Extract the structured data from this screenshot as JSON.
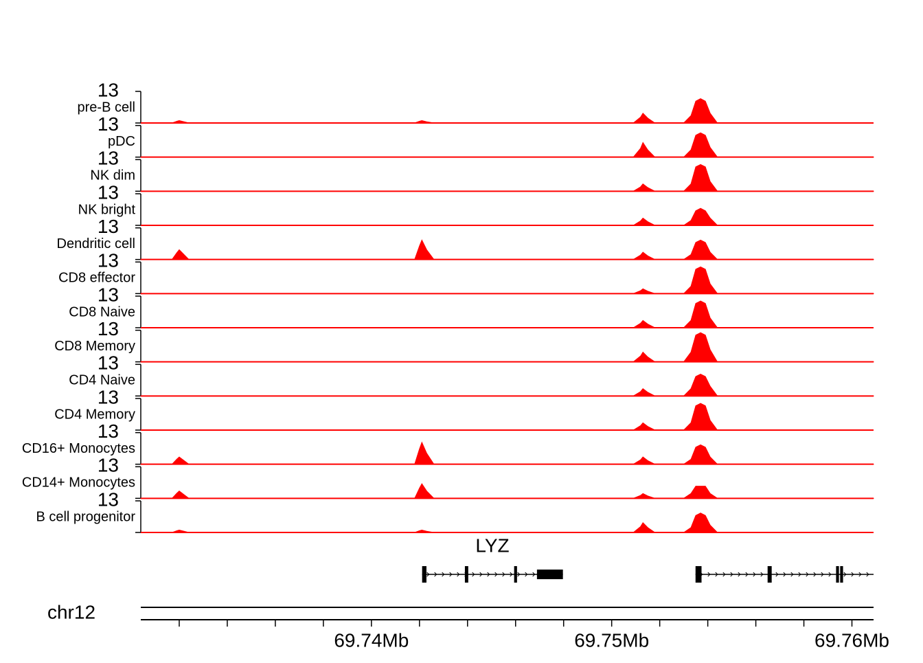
{
  "chart_data": {
    "type": "coverage-tracks",
    "xlim": [
      69.7304,
      69.7609
    ],
    "ylim": [
      0,
      13
    ],
    "yticks": [
      13
    ],
    "xticks": [
      {
        "value": 69.74,
        "label": "69.74Mb"
      },
      {
        "value": 69.75,
        "label": "69.75Mb"
      },
      {
        "value": 69.76,
        "label": "69.76Mb"
      }
    ],
    "xminorticks": [
      69.732,
      69.734,
      69.736,
      69.738,
      69.742,
      69.744,
      69.746,
      69.748,
      69.752,
      69.754,
      69.756,
      69.758
    ],
    "chromosome": "chr12",
    "series": [
      {
        "name": "pre-B cell",
        "color": "#ff0000",
        "x": [
          69.7304,
          69.7317,
          69.7319,
          69.732,
          69.7322,
          69.7324,
          69.7418,
          69.742,
          69.7421,
          69.7423,
          69.7426,
          69.7509,
          69.7512,
          69.7513,
          69.7515,
          69.7518,
          69.753,
          69.7533,
          69.7535,
          69.7537,
          69.7539,
          69.7541,
          69.7544,
          69.7609
        ],
        "values": [
          0,
          0,
          0.7,
          1,
          0.5,
          0,
          0,
          0.7,
          1,
          0.5,
          0,
          0,
          2.4,
          4,
          2,
          0,
          0,
          3,
          9,
          10,
          9,
          4,
          0,
          0
        ]
      },
      {
        "name": "pDC",
        "color": "#ff0000",
        "x": [
          69.7304,
          69.7509,
          69.7512,
          69.7513,
          69.7515,
          69.7518,
          69.753,
          69.7533,
          69.7535,
          69.7537,
          69.7539,
          69.7541,
          69.7544,
          69.7609
        ],
        "values": [
          0,
          0,
          3.6,
          6,
          3,
          0,
          0,
          3,
          9,
          10,
          9,
          4,
          0,
          0
        ]
      },
      {
        "name": "NK dim",
        "color": "#ff0000",
        "x": [
          69.7304,
          69.7509,
          69.7512,
          69.7513,
          69.7515,
          69.7518,
          69.753,
          69.7533,
          69.7535,
          69.7537,
          69.7539,
          69.7541,
          69.7544,
          69.7609
        ],
        "values": [
          0,
          0,
          1.8,
          3,
          1.5,
          0,
          0,
          3,
          10,
          11,
          10,
          4,
          0,
          0
        ]
      },
      {
        "name": "NK bright",
        "color": "#ff0000",
        "x": [
          69.7304,
          69.7509,
          69.7512,
          69.7513,
          69.7515,
          69.7518,
          69.753,
          69.7533,
          69.7535,
          69.7537,
          69.7539,
          69.7541,
          69.7544,
          69.7609
        ],
        "values": [
          0,
          0,
          1.8,
          3,
          1.5,
          0,
          0,
          2,
          6,
          7,
          6,
          3,
          0,
          0
        ]
      },
      {
        "name": "Dendritic cell",
        "color": "#ff0000",
        "x": [
          69.7304,
          69.7317,
          69.7319,
          69.732,
          69.7322,
          69.7324,
          69.7418,
          69.742,
          69.7421,
          69.7423,
          69.7426,
          69.7509,
          69.7512,
          69.7513,
          69.7515,
          69.7518,
          69.753,
          69.7533,
          69.7535,
          69.7537,
          69.7539,
          69.7541,
          69.7544,
          69.7609
        ],
        "values": [
          0,
          0,
          2.8,
          4,
          2,
          0,
          0,
          5.6,
          8,
          4,
          0,
          0,
          1.8,
          3,
          1.5,
          0,
          0,
          2,
          7,
          8,
          7,
          3,
          0,
          0
        ]
      },
      {
        "name": "CD8 effector",
        "color": "#ff0000",
        "x": [
          69.7304,
          69.7509,
          69.7512,
          69.7513,
          69.7515,
          69.7518,
          69.753,
          69.7533,
          69.7535,
          69.7537,
          69.7539,
          69.7541,
          69.7544,
          69.7609
        ],
        "values": [
          0,
          0,
          1.2,
          2,
          1,
          0,
          0,
          3,
          10,
          11,
          10,
          4,
          0,
          0
        ]
      },
      {
        "name": "CD8 Naive",
        "color": "#ff0000",
        "x": [
          69.7304,
          69.7509,
          69.7512,
          69.7513,
          69.7515,
          69.7518,
          69.753,
          69.7533,
          69.7535,
          69.7537,
          69.7539,
          69.7541,
          69.7544,
          69.7609
        ],
        "values": [
          0,
          0,
          1.8,
          3,
          1.5,
          0,
          0,
          3,
          10,
          11,
          10,
          4,
          0,
          0
        ]
      },
      {
        "name": "CD8 Memory",
        "color": "#ff0000",
        "x": [
          69.7304,
          69.7509,
          69.7512,
          69.7513,
          69.7515,
          69.7518,
          69.753,
          69.7533,
          69.7535,
          69.7537,
          69.7539,
          69.7541,
          69.7544,
          69.7609
        ],
        "values": [
          0,
          0,
          2.4,
          4,
          2,
          0,
          0,
          4,
          11,
          12,
          11,
          5,
          0,
          0
        ]
      },
      {
        "name": "CD4 Naive",
        "color": "#ff0000",
        "x": [
          69.7304,
          69.7509,
          69.7512,
          69.7513,
          69.7515,
          69.7518,
          69.753,
          69.7533,
          69.7535,
          69.7537,
          69.7539,
          69.7541,
          69.7544,
          69.7609
        ],
        "values": [
          0,
          0,
          1.8,
          3,
          1.5,
          0,
          0,
          3,
          8,
          9,
          8,
          4,
          0,
          0
        ]
      },
      {
        "name": "CD4 Memory",
        "color": "#ff0000",
        "x": [
          69.7304,
          69.7509,
          69.7512,
          69.7513,
          69.7515,
          69.7518,
          69.753,
          69.7533,
          69.7535,
          69.7537,
          69.7539,
          69.7541,
          69.7544,
          69.7609
        ],
        "values": [
          0,
          0,
          1.8,
          3,
          1.5,
          0,
          0,
          3,
          10,
          11,
          10,
          4,
          0,
          0
        ]
      },
      {
        "name": "CD16+ Monocytes",
        "color": "#ff0000",
        "x": [
          69.7304,
          69.7317,
          69.7319,
          69.732,
          69.7322,
          69.7324,
          69.7418,
          69.742,
          69.7421,
          69.7423,
          69.7426,
          69.7509,
          69.7512,
          69.7513,
          69.7515,
          69.7518,
          69.753,
          69.7533,
          69.7535,
          69.7537,
          69.7539,
          69.7541,
          69.7544,
          69.7609
        ],
        "values": [
          0,
          0,
          2.1,
          3,
          1.5,
          0,
          0,
          6.3,
          9,
          4.5,
          0,
          0,
          1.8,
          3,
          1.5,
          0,
          0,
          2,
          7,
          8,
          7,
          3,
          0,
          0
        ]
      },
      {
        "name": "CD14+ Monocytes",
        "color": "#ff0000",
        "x": [
          69.7304,
          69.7317,
          69.7319,
          69.732,
          69.7322,
          69.7324,
          69.7418,
          69.742,
          69.7421,
          69.7423,
          69.7426,
          69.7509,
          69.7512,
          69.7513,
          69.7515,
          69.7518,
          69.753,
          69.7533,
          69.7535,
          69.7537,
          69.7539,
          69.7541,
          69.7544,
          69.7609
        ],
        "values": [
          0,
          0,
          2.1,
          3,
          1.5,
          0,
          0,
          4.2,
          6,
          3,
          0,
          0,
          1.2,
          2,
          1,
          0,
          0,
          2,
          5,
          5,
          5,
          2,
          0,
          0
        ]
      },
      {
        "name": "B cell progenitor",
        "color": "#ff0000",
        "x": [
          69.7304,
          69.7317,
          69.7319,
          69.732,
          69.7322,
          69.7324,
          69.7418,
          69.742,
          69.7421,
          69.7423,
          69.7426,
          69.7509,
          69.7512,
          69.7513,
          69.7515,
          69.7518,
          69.753,
          69.7533,
          69.7535,
          69.7537,
          69.7539,
          69.7541,
          69.7544,
          69.7609
        ],
        "values": [
          0,
          0,
          0.7,
          1,
          0.5,
          0,
          0,
          0.7,
          1,
          0.5,
          0,
          0,
          2.4,
          4,
          2,
          0,
          0,
          2,
          7,
          8,
          7,
          3,
          0,
          0
        ]
      }
    ],
    "genes": {
      "label": "LYZ",
      "transcripts": [
        {
          "start": 69.74211,
          "end": 69.74797,
          "exons": [
            [
              69.74211,
              69.74229
            ],
            [
              69.74389,
              69.74403
            ],
            [
              69.74594,
              69.74606
            ],
            [
              69.74689,
              69.74797
            ]
          ]
        },
        {
          "start": 69.75349,
          "end": 69.7609,
          "exons": [
            [
              69.75349,
              69.75374
            ],
            [
              69.75649,
              69.75666
            ],
            [
              69.75934,
              69.75946
            ],
            [
              69.75951,
              69.75963
            ]
          ]
        }
      ]
    }
  }
}
